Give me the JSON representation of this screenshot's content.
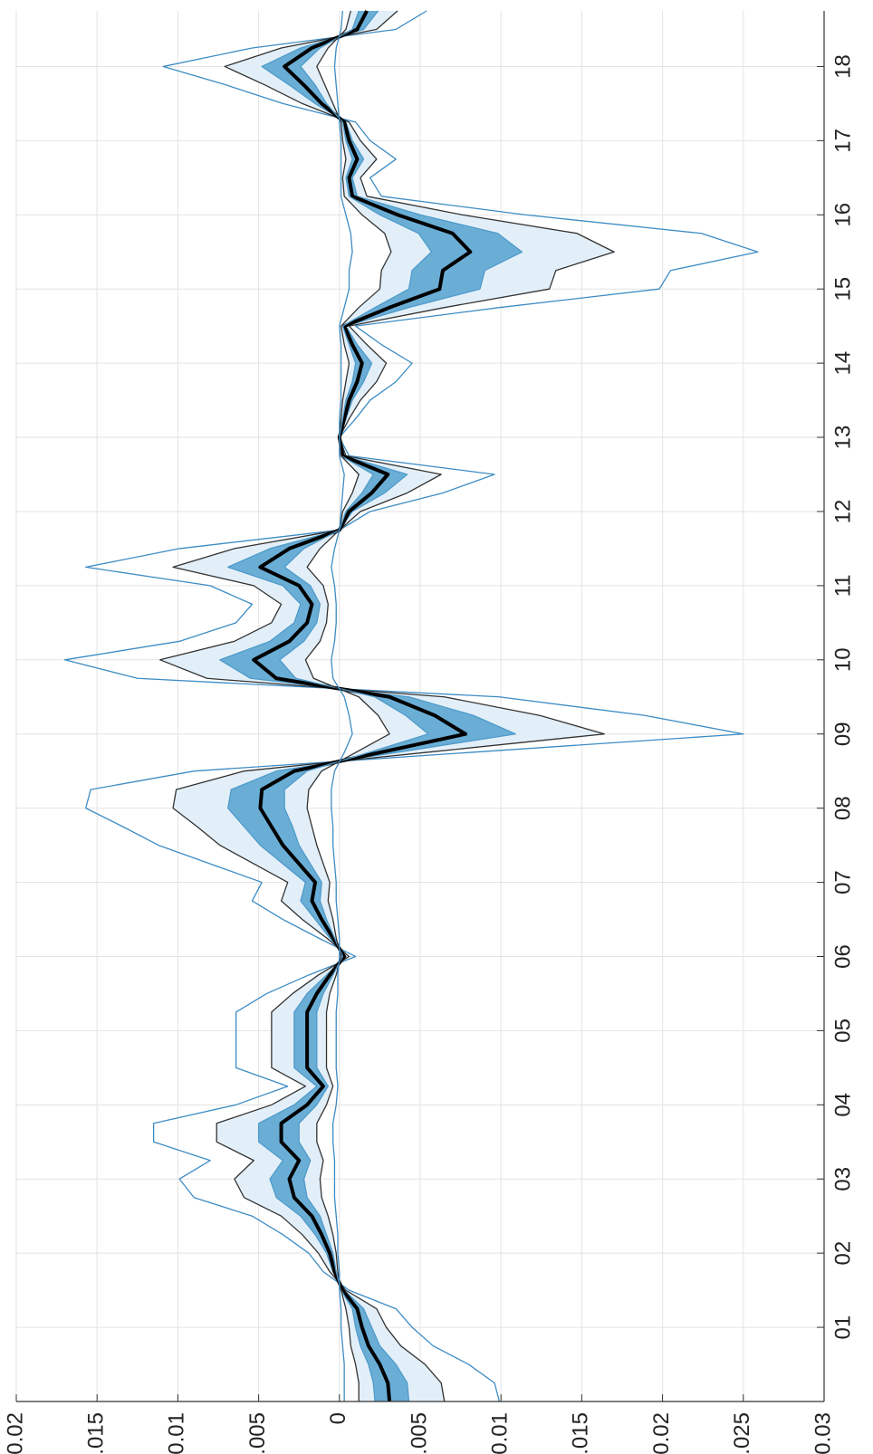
{
  "chart_data": {
    "type": "fan",
    "x": [
      2000,
      2000.25,
      2000.5,
      2000.75,
      2001,
      2001.25,
      2001.5,
      2001.75,
      2002,
      2002.25,
      2002.5,
      2002.75,
      2003,
      2003.25,
      2003.5,
      2003.75,
      2004,
      2004.25,
      2004.5,
      2004.75,
      2005,
      2005.25,
      2005.5,
      2005.75,
      2006,
      2006.25,
      2006.5,
      2006.75,
      2007,
      2007.25,
      2007.5,
      2007.75,
      2008,
      2008.25,
      2008.5,
      2008.75,
      2009,
      2009.25,
      2009.5,
      2009.75,
      2010,
      2010.25,
      2010.5,
      2010.75,
      2011,
      2011.25,
      2011.5,
      2011.75,
      2012,
      2012.25,
      2012.5,
      2012.75,
      2013,
      2013.25,
      2013.5,
      2013.75,
      2014,
      2014.25,
      2014.5,
      2014.75,
      2015,
      2015.25,
      2015.5,
      2015.75,
      2016,
      2016.25,
      2016.5,
      2016.75,
      2017,
      2017.25,
      2017.5,
      2017.75,
      2018,
      2018.25,
      2018.5,
      2018.75
    ],
    "xlim": [
      2000,
      2018.75
    ],
    "xticks": [
      {
        "value": 2001,
        "label": "01"
      },
      {
        "value": 2002,
        "label": "02"
      },
      {
        "value": 2003,
        "label": "03"
      },
      {
        "value": 2004,
        "label": "04"
      },
      {
        "value": 2005,
        "label": "05"
      },
      {
        "value": 2006,
        "label": "06"
      },
      {
        "value": 2007,
        "label": "07"
      },
      {
        "value": 2008,
        "label": "08"
      },
      {
        "value": 2009,
        "label": "09"
      },
      {
        "value": 2010,
        "label": "10"
      },
      {
        "value": 2011,
        "label": "11"
      },
      {
        "value": 2012,
        "label": "12"
      },
      {
        "value": 2013,
        "label": "13"
      },
      {
        "value": 2014,
        "label": "14"
      },
      {
        "value": 2015,
        "label": "15"
      },
      {
        "value": 2016,
        "label": "16"
      },
      {
        "value": 2017,
        "label": "17"
      },
      {
        "value": 2018,
        "label": "18"
      }
    ],
    "ylim": [
      0.02,
      -0.03
    ],
    "yticks": [
      0.02,
      0.015,
      0.01,
      0.005,
      0,
      -0.005,
      -0.01,
      -0.015,
      -0.02,
      -0.025,
      -0.03
    ],
    "grid": true,
    "series": [
      {
        "color": "#3d8cc4",
        "values": [
          -0.0099,
          -0.0096,
          -0.008,
          -0.0058,
          -0.0045,
          -0.0035,
          -0.0006,
          0.001,
          0.0019,
          0.0035,
          0.0054,
          0.009,
          0.0099,
          0.008,
          0.0115,
          0.0115,
          0.0064,
          0.0032,
          0.0064,
          0.0064,
          0.0064,
          0.0064,
          0.0045,
          0.0019,
          -0.001,
          0.0013,
          0.0035,
          0.0054,
          0.0048,
          0.008,
          0.0112,
          0.0134,
          0.0157,
          0.0154,
          0.009,
          -0.008,
          -0.025,
          -0.0189,
          -0.0099,
          0.0125,
          0.017,
          0.0099,
          0.0064,
          0.0054,
          0.008,
          0.0157,
          0.0099,
          0,
          -0.0019,
          -0.0064,
          -0.0096,
          -0.0006,
          0,
          -0.001,
          -0.0019,
          -0.0035,
          -0.0045,
          -0.0026,
          -0.001,
          -0.0099,
          -0.0198,
          -0.0205,
          -0.0259,
          -0.0224,
          -0.0115,
          -0.0026,
          -0.0019,
          -0.0035,
          -0.0019,
          -0.001,
          0.0035,
          0.007,
          0.0109,
          0.0054,
          -0.0035,
          -0.0054
        ]
      },
      {
        "color": "#333333",
        "fill": "#e3eff8",
        "values": [
          -0.0065,
          -0.0063,
          -0.0053,
          -0.0038,
          -0.0029,
          -0.0023,
          -0.0004,
          0.0006,
          0.0013,
          0.0023,
          0.0036,
          0.0059,
          0.0065,
          0.0053,
          0.0076,
          0.0076,
          0.0042,
          0.0021,
          0.0042,
          0.0042,
          0.0042,
          0.0042,
          0.0029,
          0.0013,
          -0.0006,
          0.0008,
          0.0023,
          0.0036,
          0.0032,
          0.0053,
          0.0074,
          0.0088,
          0.0103,
          0.0101,
          0.0059,
          -0.0053,
          -0.0164,
          -0.0124,
          -0.0065,
          0.0082,
          0.0111,
          0.0065,
          0.0042,
          0.0036,
          0.0053,
          0.0103,
          0.0065,
          0,
          -0.0013,
          -0.0042,
          -0.0063,
          -0.0004,
          0,
          -0.0006,
          -0.0013,
          -0.0023,
          -0.0029,
          -0.0017,
          -0.0006,
          -0.0065,
          -0.013,
          -0.0134,
          -0.017,
          -0.0147,
          -0.0076,
          -0.0017,
          -0.0013,
          -0.0023,
          -0.0013,
          -0.0006,
          0.0023,
          0.0046,
          0.0071,
          0.0036,
          -0.0023,
          -0.0036
        ]
      },
      {
        "color": "#4f9bcb",
        "fill": "#6aaed6",
        "values": [
          -0.0043,
          -0.0042,
          -0.0035,
          -0.0025,
          -0.002,
          -0.0015,
          -0.0003,
          0.0004,
          0.0008,
          0.0015,
          0.0024,
          0.0039,
          0.0043,
          0.0035,
          0.005,
          0.005,
          0.0028,
          0.0014,
          0.0028,
          0.0028,
          0.0028,
          0.0028,
          0.002,
          0.0008,
          -0.0004,
          0.0006,
          0.0015,
          0.0024,
          0.0021,
          0.0035,
          0.0049,
          0.0059,
          0.0069,
          0.0067,
          0.0039,
          -0.0035,
          -0.0109,
          -0.0083,
          -0.0043,
          0.0055,
          0.0074,
          0.0043,
          0.0028,
          0.0024,
          0.0035,
          0.0069,
          0.0043,
          0,
          -0.0008,
          -0.0028,
          -0.0042,
          -0.0003,
          0,
          -0.0004,
          -0.0008,
          -0.0015,
          -0.002,
          -0.0011,
          -0.0004,
          -0.0043,
          -0.0087,
          -0.009,
          -0.0113,
          -0.0098,
          -0.005,
          -0.0011,
          -0.0008,
          -0.0015,
          -0.0008,
          -0.0004,
          0.0015,
          0.0031,
          0.0048,
          0.0024,
          -0.0015,
          -0.0024
        ]
      },
      {
        "color": "#000000",
        "values": [
          -0.0031,
          -0.003,
          -0.0025,
          -0.0018,
          -0.0014,
          -0.0011,
          -0.0002,
          0.0003,
          0.0006,
          0.0011,
          0.0017,
          0.0028,
          0.0031,
          0.0025,
          0.0036,
          0.0036,
          0.002,
          0.001,
          0.002,
          0.002,
          0.002,
          0.002,
          0.0014,
          0.0006,
          -0.0003,
          0.0004,
          0.0011,
          0.0017,
          0.0015,
          0.0025,
          0.0035,
          0.0042,
          0.0049,
          0.0048,
          0.0028,
          -0.0025,
          -0.0078,
          -0.0059,
          -0.0031,
          0.0039,
          0.0053,
          0.0031,
          0.002,
          0.0017,
          0.0025,
          0.0049,
          0.0031,
          0,
          -0.0006,
          -0.002,
          -0.003,
          -0.0002,
          0,
          -0.0003,
          -0.0006,
          -0.0011,
          -0.0014,
          -0.0008,
          -0.0003,
          -0.0031,
          -0.0062,
          -0.0064,
          -0.0081,
          -0.007,
          -0.0036,
          -0.0008,
          -0.0006,
          -0.0011,
          -0.0006,
          -0.0003,
          0.0011,
          0.0022,
          0.0034,
          0.0017,
          -0.0011,
          -0.0017
        ]
      },
      {
        "color": "#4f9bcb",
        "values": [
          -0.0022,
          -0.0021,
          -0.0018,
          -0.0013,
          -0.001,
          -0.0008,
          -0.0001,
          0.0002,
          0.0004,
          0.0008,
          0.0012,
          0.002,
          0.0022,
          0.0018,
          0.0025,
          0.0025,
          0.0014,
          0.0007,
          0.0014,
          0.0014,
          0.0014,
          0.0014,
          0.001,
          0.0004,
          -0.0002,
          0.0003,
          0.0008,
          0.0012,
          0.0011,
          0.0018,
          0.0025,
          0.0029,
          0.0034,
          0.0034,
          0.002,
          -0.0018,
          -0.0055,
          -0.0041,
          -0.0022,
          0.0027,
          0.0037,
          0.0022,
          0.0014,
          0.0012,
          0.0018,
          0.0034,
          0.0022,
          0,
          -0.0004,
          -0.0014,
          -0.0021,
          -0.0001,
          0,
          -0.0002,
          -0.0004,
          -0.0008,
          -0.001,
          -0.0006,
          -0.0002,
          -0.0022,
          -0.0043,
          -0.0045,
          -0.0057,
          -0.0049,
          -0.0025,
          -0.0006,
          -0.0004,
          -0.0008,
          -0.0004,
          -0.0002,
          0.0008,
          0.0015,
          0.0024,
          0.0012,
          -0.0008,
          -0.0012
        ]
      },
      {
        "color": "#333333",
        "values": [
          -0.0012,
          -0.0012,
          -0.001,
          -0.0007,
          -0.0006,
          -0.0004,
          -0.0001,
          0.0001,
          0.0002,
          0.0004,
          0.0007,
          0.0011,
          0.0012,
          0.001,
          0.0014,
          0.0014,
          0.0008,
          0.0004,
          0.0008,
          0.0008,
          0.0008,
          0.0008,
          0.0006,
          0.0002,
          -0.0001,
          0.0002,
          0.0004,
          0.0007,
          0.0006,
          0.001,
          0.0014,
          0.0017,
          0.002,
          0.0019,
          0.0011,
          -0.001,
          -0.0031,
          -0.0024,
          -0.0012,
          0.0016,
          0.0021,
          0.0012,
          0.0008,
          0.0007,
          0.001,
          0.002,
          0.0012,
          0,
          -0.0002,
          -0.0008,
          -0.0012,
          -0.0001,
          0,
          -0.0001,
          -0.0002,
          -0.0004,
          -0.0006,
          -0.0003,
          -0.0001,
          -0.0012,
          -0.0025,
          -0.0026,
          -0.0032,
          -0.0028,
          -0.0014,
          -0.0003,
          -0.0002,
          -0.0004,
          -0.0002,
          -0.0001,
          0.0004,
          0.0009,
          0.0014,
          0.0007,
          -0.0004,
          -0.0007
        ]
      },
      {
        "color": "#3d8cc4",
        "values": [
          -0.0003,
          -0.0003,
          -0.0003,
          -0.0002,
          -0.0001,
          -0.0001,
          0,
          0,
          0.0001,
          0.0001,
          0.0002,
          0.0003,
          0.0003,
          0.0003,
          0.0004,
          0.0004,
          0.0002,
          0.0001,
          0.0002,
          0.0002,
          0.0002,
          0.0002,
          0.0001,
          0.0001,
          0,
          0,
          0.0001,
          0.0002,
          0.0002,
          0.0003,
          0.0004,
          0.0004,
          0.0005,
          0.0005,
          0.0003,
          -0.0003,
          -0.0008,
          -0.0006,
          -0.0003,
          0.0004,
          0.0005,
          0.0003,
          0.0002,
          0.0002,
          0.0003,
          0.0005,
          0.0003,
          0,
          -0.0001,
          -0.0002,
          -0.0003,
          0,
          0,
          0,
          -0.0001,
          -0.0001,
          -0.0001,
          -0.0001,
          0,
          -0.0003,
          -0.0006,
          -0.0006,
          -0.0008,
          -0.0007,
          -0.0004,
          -0.0001,
          -0.0001,
          -0.0001,
          -0.0001,
          0,
          0.0001,
          0.0002,
          0.0003,
          0.0002,
          -0.0001,
          -0.0002
        ]
      }
    ]
  }
}
